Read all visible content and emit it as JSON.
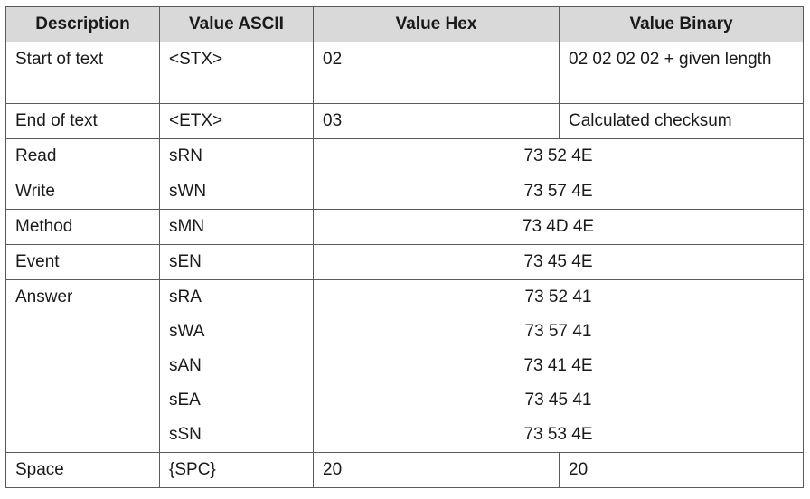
{
  "headers": [
    "Description",
    "Value ASCII",
    "Value Hex",
    "Value Binary"
  ],
  "rows": {
    "stx": {
      "description": "Start of text",
      "ascii": "<STX>",
      "hex": "02",
      "binary": "02 02 02 02 + given length"
    },
    "etx": {
      "description": "End of text",
      "ascii": "<ETX>",
      "hex": "03",
      "binary": "Calculated checksum"
    },
    "read": {
      "description": "Read",
      "ascii": "sRN",
      "value": "73 52 4E"
    },
    "write": {
      "description": "Write",
      "ascii": "sWN",
      "value": "73 57 4E"
    },
    "method": {
      "description": "Method",
      "ascii": "sMN",
      "value": "73 4D 4E"
    },
    "event": {
      "description": "Event",
      "ascii": "sEN",
      "value": "73 45 4E"
    },
    "answer": {
      "description": "Answer",
      "entries": [
        {
          "ascii": "sRA",
          "value": "73 52 41"
        },
        {
          "ascii": "sWA",
          "value": "73 57 41"
        },
        {
          "ascii": "sAN",
          "value": "73 41 4E"
        },
        {
          "ascii": "sEA",
          "value": "73 45 41"
        },
        {
          "ascii": "sSN",
          "value": "73 53 4E"
        }
      ]
    },
    "space": {
      "description": "Space",
      "ascii": "{SPC}",
      "hex": "20",
      "binary": "20"
    }
  }
}
